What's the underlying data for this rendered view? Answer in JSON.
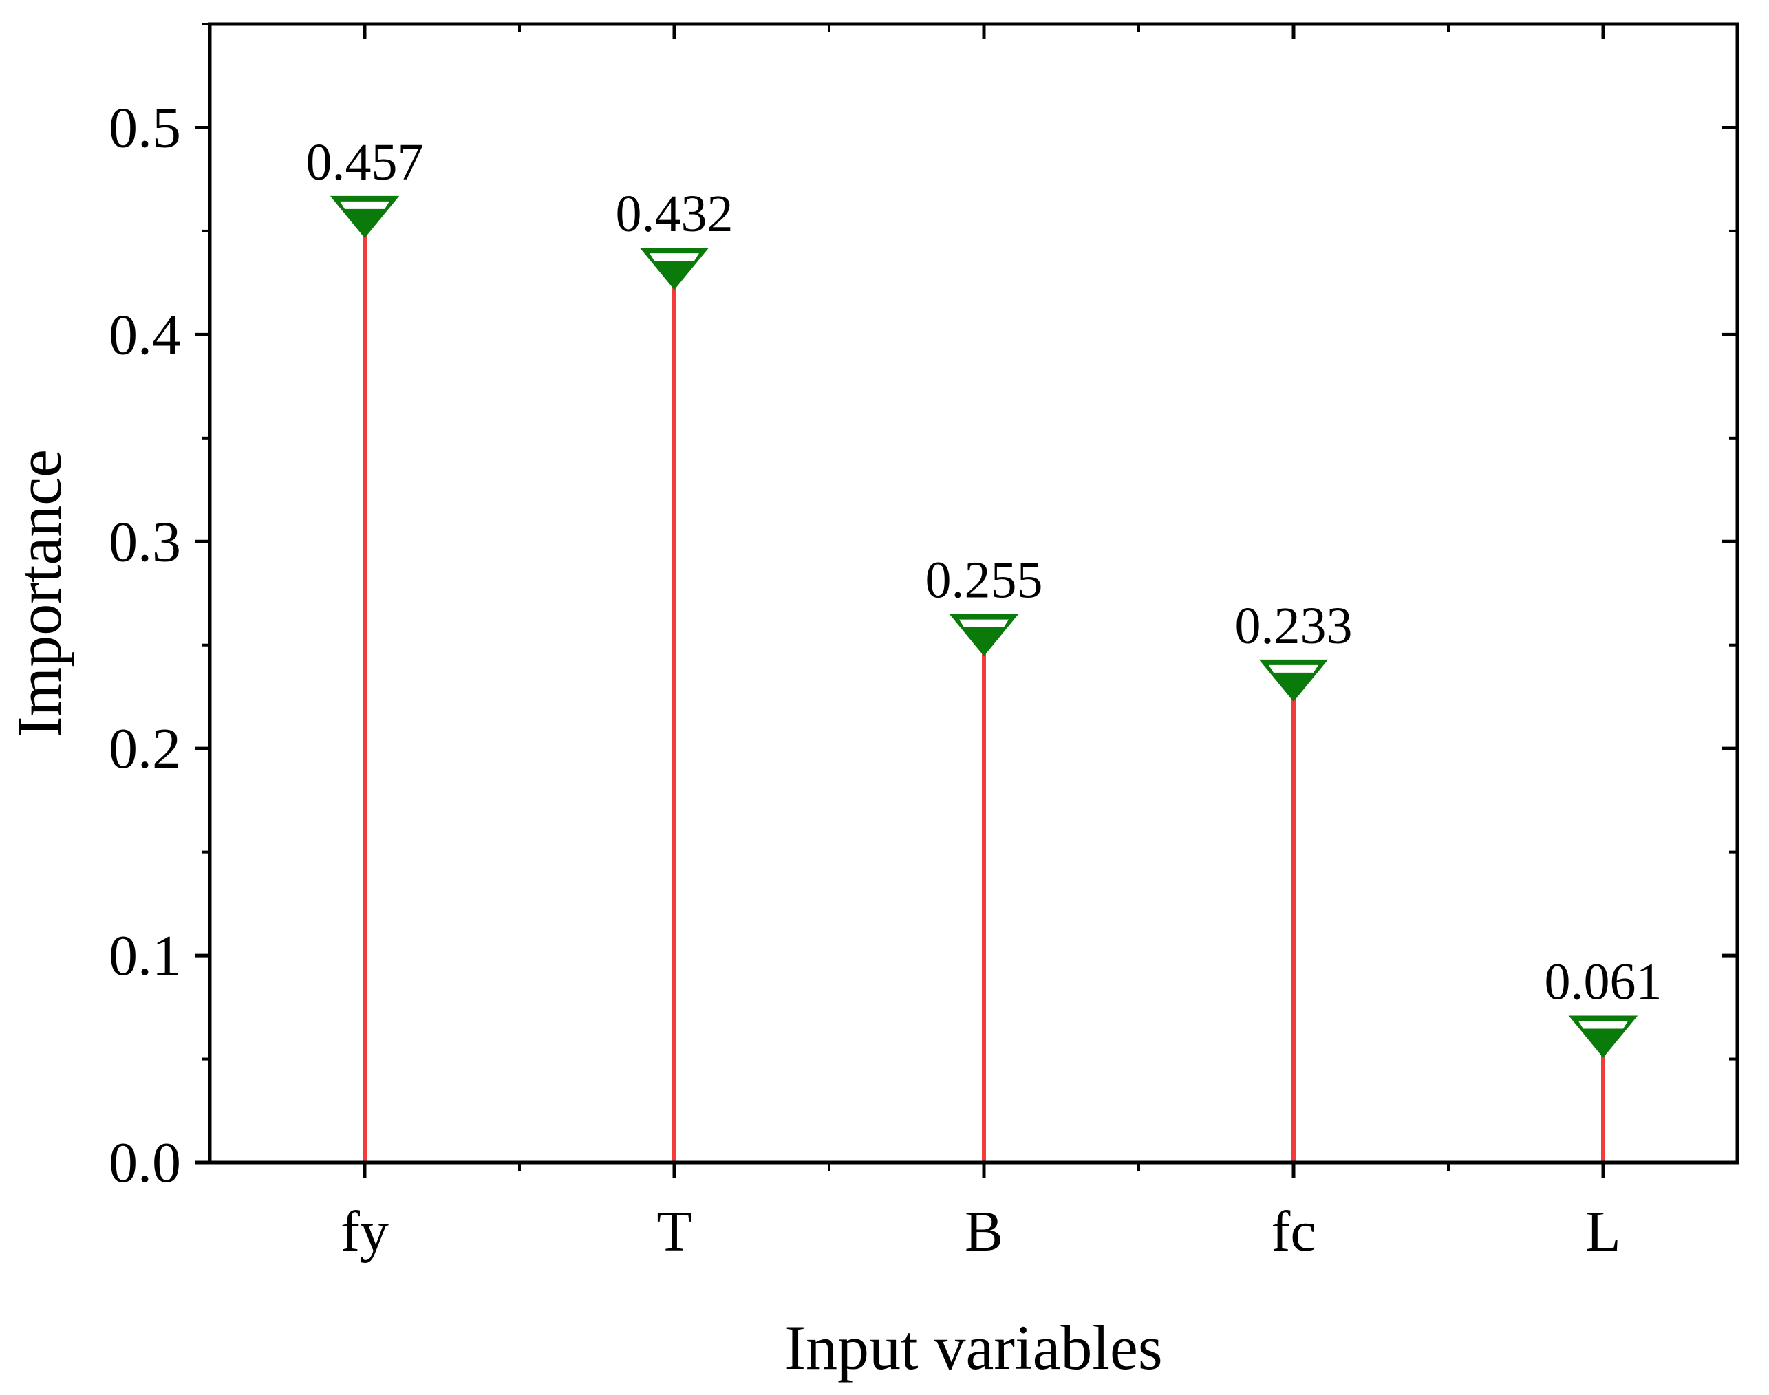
{
  "chart_data": {
    "type": "lollipop",
    "title": "",
    "xlabel": "Input variables",
    "ylabel": "Importance",
    "categories": [
      "fy",
      "T",
      "B",
      "fc",
      "L"
    ],
    "values": [
      0.457,
      0.432,
      0.255,
      0.233,
      0.061
    ],
    "value_labels": [
      "0.457",
      "0.432",
      "0.255",
      "0.233",
      "0.061"
    ],
    "ylim": [
      0,
      0.55
    ],
    "yticks": [
      0.0,
      0.1,
      0.2,
      0.3,
      0.4,
      0.5
    ],
    "ytick_labels": [
      "0.0",
      "0.1",
      "0.2",
      "0.3",
      "0.4",
      "0.5"
    ],
    "grid": false,
    "legend": "none",
    "stem_color": "#f23c3c",
    "marker": "triangle-down",
    "marker_color": "#0a7a0a"
  }
}
